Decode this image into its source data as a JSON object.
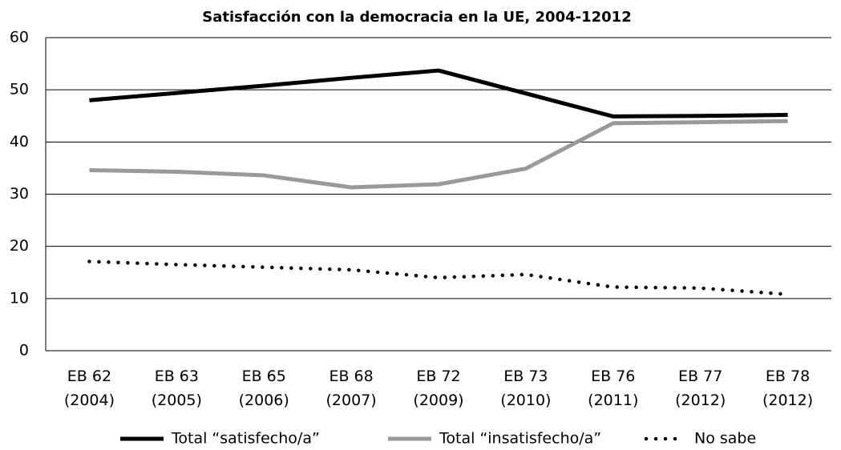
{
  "chart_data": {
    "type": "line",
    "title": "Satisfacción con la democracia en la UE, 2004-12012",
    "categories": [
      "EB 62 (2004)",
      "EB 63 (2005)",
      "EB 65 (2006)",
      "EB 68 (2007)",
      "EB 72 (2009)",
      "EB 73 (2010)",
      "EB 76 (2011)",
      "EB 77 (2012)",
      "EB 78 (2012)"
    ],
    "series": [
      {
        "name": "Total “satisfecho/a”",
        "color": "#000000",
        "style": "solid",
        "values": [
          48,
          49.4,
          50.8,
          52.3,
          53.7,
          49.3,
          44.9,
          45,
          45.2
        ]
      },
      {
        "name": "Total “insatisfecho/a”",
        "color": "#999999",
        "style": "solid",
        "values": [
          34.6,
          34.3,
          33.6,
          31.3,
          31.9,
          34.9,
          43.6,
          43.8,
          44
        ]
      },
      {
        "name": "No sabe",
        "color": "#000000",
        "style": "dotted",
        "values": [
          17.1,
          16.5,
          16,
          15.5,
          14,
          14.6,
          12.2,
          12,
          10.8
        ]
      }
    ],
    "ylim": [
      0,
      60
    ],
    "yticks": [
      0,
      10,
      20,
      30,
      40,
      50,
      60
    ],
    "grid": true,
    "legend": "bottom"
  }
}
